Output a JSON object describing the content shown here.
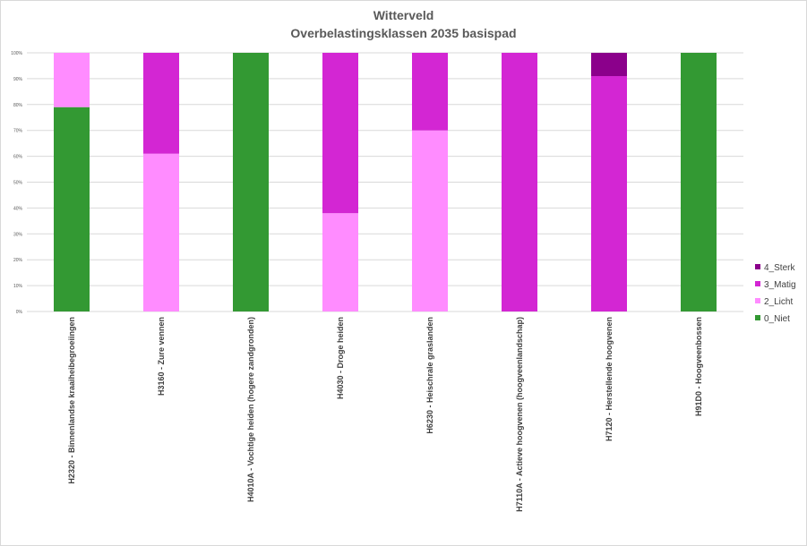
{
  "chart_data": {
    "type": "bar",
    "stacked": true,
    "percent": true,
    "title": "Witterveld",
    "subtitle": "Overbelastingsklassen 2035 basispad",
    "xlabel": "",
    "ylabel": "",
    "ylim": [
      0,
      100
    ],
    "yticks": [
      "0%",
      "10%",
      "20%",
      "30%",
      "40%",
      "50%",
      "60%",
      "70%",
      "80%",
      "90%",
      "100%"
    ],
    "grid": true,
    "legend_position": "right",
    "categories": [
      "H2320 - Binnenlandse kraaiheibegroeiingen",
      "H3160 - Zure vennen",
      "H4010A - Vochtige heiden (hogere zandgronden)",
      "H4030 - Droge heiden",
      "H6230 - Heischrale graslanden",
      "H7110A - Actieve hoogvenen (hoogveenlandschap)",
      "H7120 - Herstellende hoogvenen",
      "H91D0 - Hoogveenbossen"
    ],
    "series": [
      {
        "name": "0_Niet",
        "color": "#339933",
        "values": [
          79,
          0,
          100,
          0,
          0,
          0,
          0,
          100
        ]
      },
      {
        "name": "2_Licht",
        "color": "#ff8cff",
        "values": [
          21,
          61,
          0,
          38,
          70,
          0,
          0,
          0
        ]
      },
      {
        "name": "3_Matig",
        "color": "#d326d3",
        "values": [
          0,
          39,
          0,
          62,
          30,
          100,
          91,
          0
        ]
      },
      {
        "name": "4_Sterk",
        "color": "#8b008b",
        "values": [
          0,
          0,
          0,
          0,
          0,
          0,
          9,
          0
        ]
      }
    ]
  }
}
